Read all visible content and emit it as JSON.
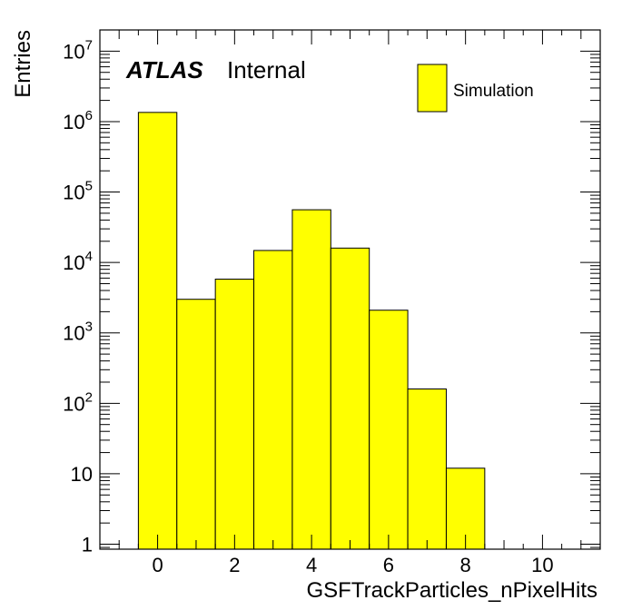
{
  "chart_data": {
    "type": "bar",
    "histogram": true,
    "bin_centers": [
      0,
      1,
      2,
      3,
      4,
      5,
      6,
      7,
      8,
      9,
      10
    ],
    "values": [
      1350000,
      3000,
      5800,
      14800,
      56000,
      16000,
      2100,
      160,
      12,
      0,
      0
    ],
    "series": [
      {
        "name": "Simulation",
        "color": "#ffff00",
        "values": [
          1350000,
          3000,
          5800,
          14800,
          56000,
          16000,
          2100,
          160,
          12,
          0,
          0
        ]
      }
    ],
    "xlabel": "GSFTrackParticles_nPixelHits",
    "ylabel": "Entries",
    "xlim": [
      -1.5,
      11.5
    ],
    "ylim": [
      0.85,
      20000000
    ],
    "log_y": true,
    "x_ticks": [
      0,
      2,
      4,
      6,
      8,
      10
    ],
    "y_tick_labels": [
      {
        "value": 1,
        "base": "1",
        "exp": ""
      },
      {
        "value": 10,
        "base": "10",
        "exp": ""
      },
      {
        "value": 100,
        "base": "10",
        "exp": "2"
      },
      {
        "value": 1000,
        "base": "10",
        "exp": "3"
      },
      {
        "value": 10000,
        "base": "10",
        "exp": "4"
      },
      {
        "value": 100000,
        "base": "10",
        "exp": "5"
      },
      {
        "value": 1000000,
        "base": "10",
        "exp": "6"
      },
      {
        "value": 10000000,
        "base": "10",
        "exp": "7"
      }
    ],
    "grid": false,
    "legend_position": "top-right",
    "annotation": {
      "bold": "ATLAS",
      "text": "Internal"
    }
  }
}
